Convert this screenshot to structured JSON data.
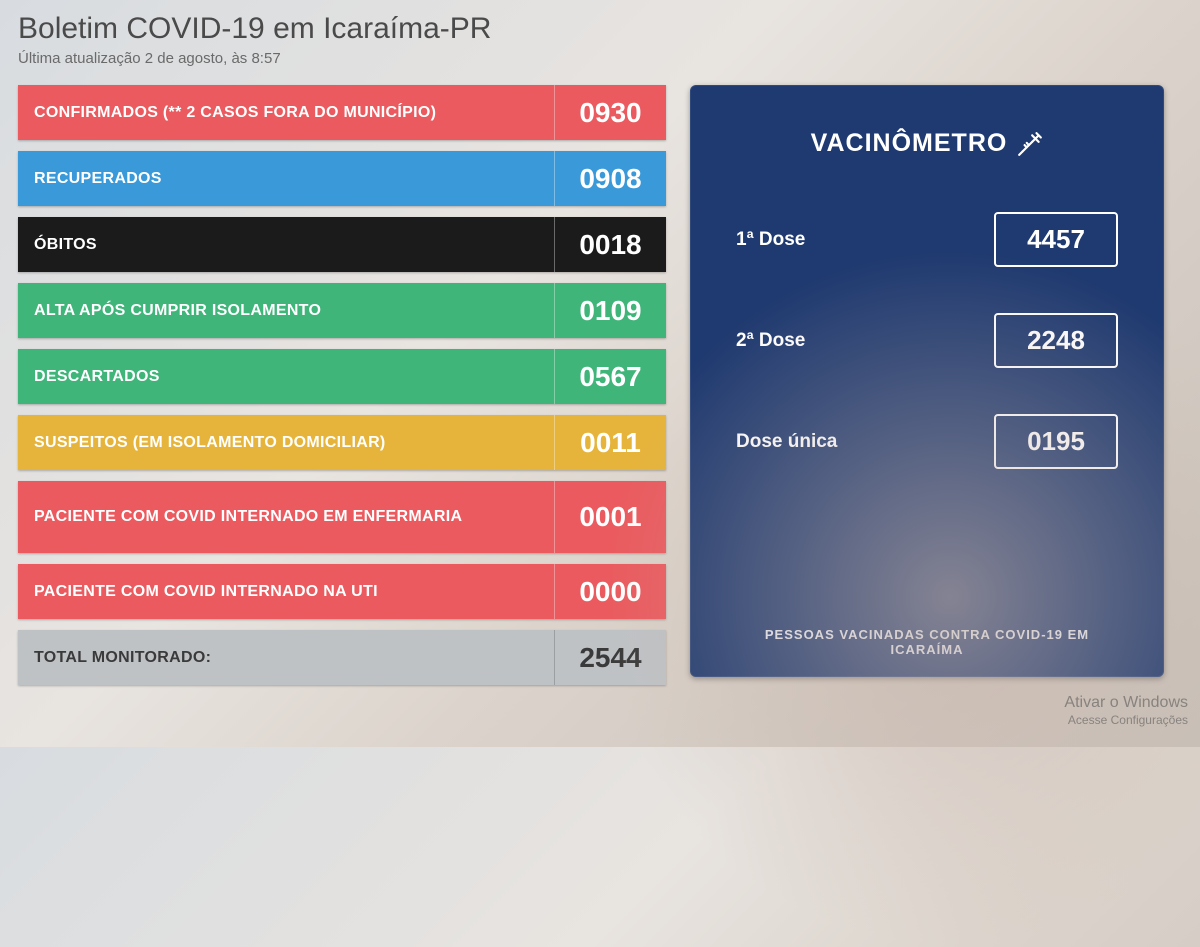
{
  "header": {
    "title": "Boletim COVID-19 em Icaraíma-PR",
    "subtitle": "Última atualização 2 de agosto, às 8:57"
  },
  "colors": {
    "red": "#ea5a5e",
    "blue": "#3a9ad9",
    "black": "#1b1b1b",
    "green": "#3fb57a",
    "yellow": "#e6b43a",
    "gray": "#bfc2c5",
    "panel": "#1f3a70",
    "bg_from": "#d8dce0",
    "bg_to": "#c8c0b8"
  },
  "stats": [
    {
      "label": "CONFIRMADOS (** 2 CASOS FORA DO MUNICÍPIO)",
      "value": "0930",
      "color": "#ea5a5e",
      "tall": false
    },
    {
      "label": "RECUPERADOS",
      "value": "0908",
      "color": "#3a9ad9",
      "tall": false
    },
    {
      "label": "ÓBITOS",
      "value": "0018",
      "color": "#1b1b1b",
      "tall": false
    },
    {
      "label": "ALTA APÓS CUMPRIR ISOLAMENTO",
      "value": "0109",
      "color": "#3fb57a",
      "tall": false
    },
    {
      "label": "DESCARTADOS",
      "value": "0567",
      "color": "#3fb57a",
      "tall": false
    },
    {
      "label": "SUSPEITOS (EM ISOLAMENTO DOMICILIAR)",
      "value": "0011",
      "color": "#e6b43a",
      "tall": false
    },
    {
      "label": "PACIENTE COM COVID INTERNADO EM ENFERMARIA",
      "value": "0001",
      "color": "#ea5a5e",
      "tall": true
    },
    {
      "label": "PACIENTE COM COVID INTERNADO NA UTI",
      "value": "0000",
      "color": "#ea5a5e",
      "tall": false
    }
  ],
  "total": {
    "label": "TOTAL MONITORADO:",
    "value": "2544",
    "color": "#bfc2c5"
  },
  "vaccine": {
    "title": "VACINÔMETRO",
    "doses": [
      {
        "label": "1ª Dose",
        "value": "4457"
      },
      {
        "label": "2ª Dose",
        "value": "2248"
      },
      {
        "label": "Dose única",
        "value": "0195"
      }
    ],
    "footer": "PESSOAS VACINADAS CONTRA COVID-19 EM ICARAÍMA"
  },
  "watermark": {
    "line1": "Ativar o Windows",
    "line2": "Acesse Configurações"
  }
}
